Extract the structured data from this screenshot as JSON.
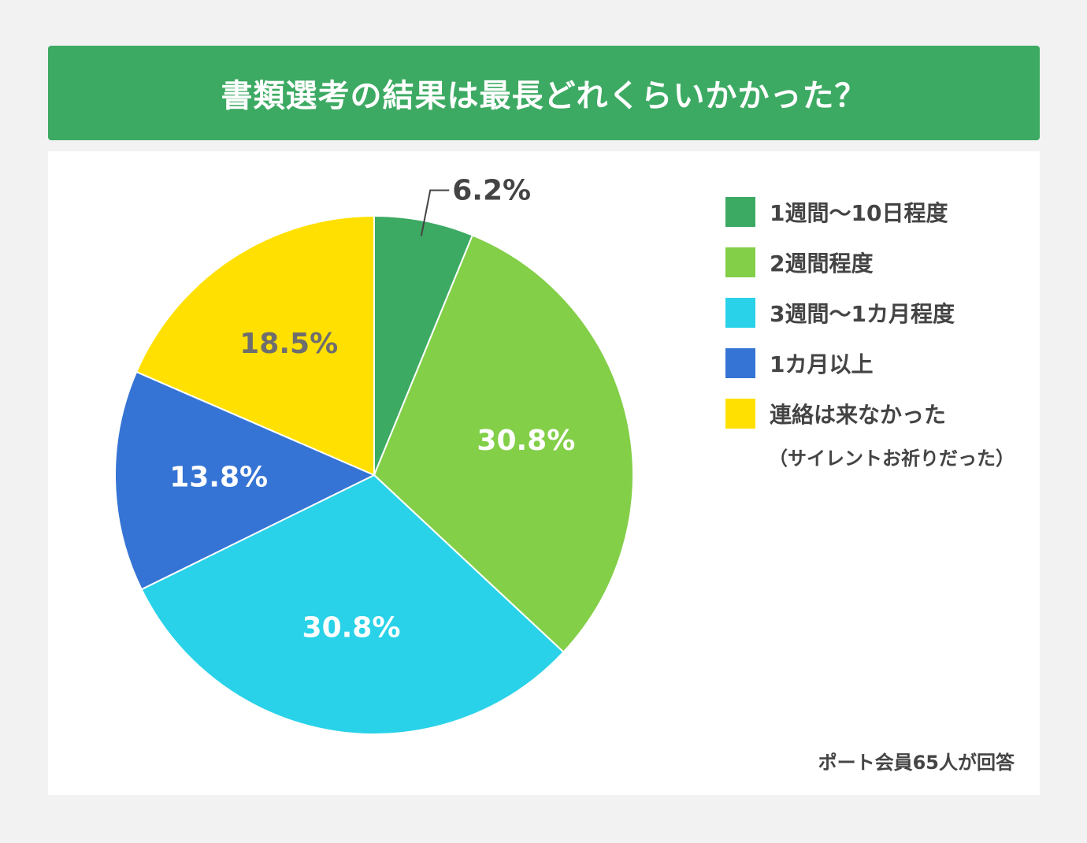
{
  "header": {
    "title": "書類選考の結果は最長どれくらいかかった？"
  },
  "chart_data": {
    "type": "pie",
    "title": "書類選考の結果は最長どれくらいかかった？",
    "slices": [
      {
        "label": "1週間〜10日程度",
        "value": 6.2,
        "display": "6.2%",
        "color": "#3daa63",
        "label_color": "#444444"
      },
      {
        "label": "2週間程度",
        "value": 30.8,
        "display": "30.8%",
        "color": "#83cf48",
        "label_color": "#ffffff"
      },
      {
        "label": "3週間〜1カ月程度",
        "value": 30.8,
        "display": "30.8%",
        "color": "#29d2e8",
        "label_color": "#ffffff"
      },
      {
        "label": "1カ月以上",
        "value": 13.8,
        "display": "13.8%",
        "color": "#3574d4",
        "label_color": "#ffffff"
      },
      {
        "label": "連絡は来なかった",
        "value": 18.5,
        "display": "18.5%",
        "color": "#ffe000",
        "label_color": "#6e6e6e"
      }
    ],
    "legend_placement": "right",
    "legend_note": "（サイレントお祈りだった）"
  },
  "footnote": "ポート会員65人が回答"
}
